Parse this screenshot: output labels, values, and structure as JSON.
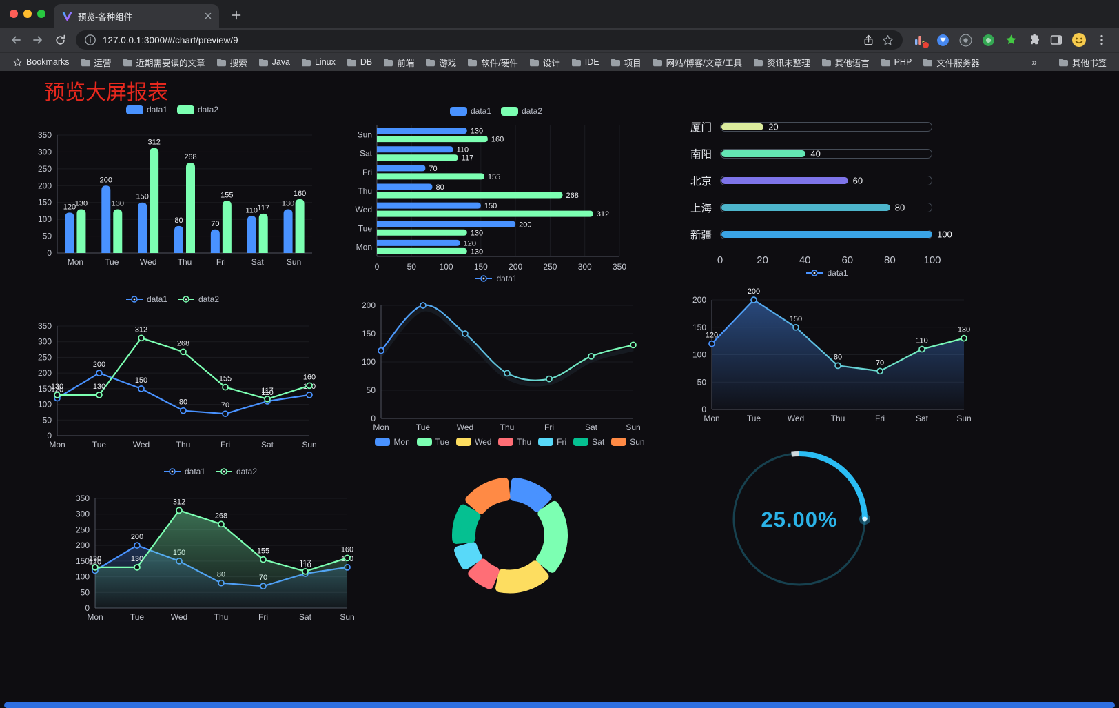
{
  "browser": {
    "tab_title": "预览-各种组件",
    "url": "127.0.0.1:3000/#/chart/preview/9",
    "bookmarks_bar": {
      "first_item": "Bookmarks",
      "folders": [
        "运营",
        "近期需要读的文章",
        "搜索",
        "Java",
        "Linux",
        "DB",
        "前端",
        "游戏",
        "软件/硬件",
        "设计",
        "IDE",
        "项目",
        "网站/博客/文章/工具",
        "资讯未整理",
        "其他语言",
        "PHP",
        "文件服务器"
      ],
      "overflow_chevron": "»",
      "other_bookmarks": "其他书签"
    }
  },
  "page": {
    "title": "预览大屏报表",
    "title_color": "#e6281e"
  },
  "chart_data": [
    {
      "id": "grouped-bar",
      "type": "bar",
      "legend": [
        "data1",
        "data2"
      ],
      "categories": [
        "Mon",
        "Tue",
        "Wed",
        "Thu",
        "Fri",
        "Sat",
        "Sun"
      ],
      "series": [
        {
          "name": "data1",
          "color": "#4992ff",
          "values": [
            120,
            200,
            150,
            80,
            70,
            110,
            130
          ]
        },
        {
          "name": "data2",
          "color": "#7cffb2",
          "values": [
            130,
            130,
            312,
            268,
            155,
            117,
            160
          ]
        }
      ],
      "ylim": [
        0,
        350
      ],
      "ytick_step": 50,
      "value_labels": true
    },
    {
      "id": "grouped-hbar",
      "type": "hbar",
      "legend": [
        "data1",
        "data2"
      ],
      "categories": [
        "Mon",
        "Tue",
        "Wed",
        "Thu",
        "Fri",
        "Sat",
        "Sun"
      ],
      "series": [
        {
          "name": "data1",
          "color": "#4992ff",
          "values": [
            120,
            200,
            150,
            80,
            70,
            110,
            130
          ]
        },
        {
          "name": "data2",
          "color": "#7cffb2",
          "values": [
            130,
            130,
            312,
            268,
            155,
            117,
            160
          ]
        }
      ],
      "xlim": [
        0,
        350
      ],
      "xtick_step": 50,
      "value_labels": true
    },
    {
      "id": "capsule-rank",
      "type": "capsule",
      "max": 100,
      "xticks": [
        0,
        20,
        40,
        60,
        80,
        100
      ],
      "rows": [
        {
          "label": "厦门",
          "value": 20,
          "color": "#dcec9e"
        },
        {
          "label": "南阳",
          "value": 40,
          "color": "#63e6b4"
        },
        {
          "label": "北京",
          "value": 60,
          "color": "#7e74e9"
        },
        {
          "label": "上海",
          "value": 80,
          "color": "#4db5cc"
        },
        {
          "label": "新疆",
          "value": 100,
          "color": "#3aa4e6"
        }
      ]
    },
    {
      "id": "line-two",
      "type": "line",
      "legend": [
        "data1",
        "data2"
      ],
      "categories": [
        "Mon",
        "Tue",
        "Wed",
        "Thu",
        "Fri",
        "Sat",
        "Sun"
      ],
      "series": [
        {
          "name": "data1",
          "color": "#4992ff",
          "values": [
            120,
            200,
            150,
            80,
            70,
            110,
            130
          ]
        },
        {
          "name": "data2",
          "color": "#7cffb2",
          "values": [
            130,
            130,
            312,
            268,
            155,
            117,
            160
          ]
        }
      ],
      "ylim": [
        0,
        350
      ],
      "ytick_step": 50,
      "value_labels": true,
      "smooth": false
    },
    {
      "id": "line-smooth-gradient",
      "type": "line",
      "legend": [
        "data1"
      ],
      "categories": [
        "Mon",
        "Tue",
        "Wed",
        "Thu",
        "Fri",
        "Sat",
        "Sun"
      ],
      "series": [
        {
          "name": "data1",
          "gradient": [
            "#4992ff",
            "#7cffb2"
          ],
          "values": [
            120,
            200,
            150,
            80,
            70,
            110,
            130
          ]
        }
      ],
      "ylim": [
        0,
        200
      ],
      "ytick_step": 50,
      "value_labels": false,
      "smooth": true
    },
    {
      "id": "line-area-gradient",
      "type": "line",
      "legend": [
        "data1"
      ],
      "categories": [
        "Mon",
        "Tue",
        "Wed",
        "Thu",
        "Fri",
        "Sat",
        "Sun"
      ],
      "series": [
        {
          "name": "data1",
          "gradient": [
            "#4992ff",
            "#7cffb2"
          ],
          "area": true,
          "values": [
            120,
            200,
            150,
            80,
            70,
            110,
            130
          ]
        }
      ],
      "ylim": [
        0,
        200
      ],
      "ytick_step": 50,
      "value_labels": true,
      "smooth": false
    },
    {
      "id": "line-area-two",
      "type": "line",
      "legend": [
        "data1",
        "data2"
      ],
      "categories": [
        "Mon",
        "Tue",
        "Wed",
        "Thu",
        "Fri",
        "Sat",
        "Sun"
      ],
      "series": [
        {
          "name": "data1",
          "color": "#4992ff",
          "area": true,
          "values": [
            120,
            200,
            150,
            80,
            70,
            110,
            130
          ]
        },
        {
          "name": "data2",
          "color": "#7cffb2",
          "area": true,
          "values": [
            130,
            130,
            312,
            268,
            155,
            117,
            160
          ]
        }
      ],
      "ylim": [
        0,
        350
      ],
      "ytick_step": 50,
      "value_labels": true,
      "smooth": false
    },
    {
      "id": "donut",
      "type": "donut",
      "legend": [
        "Mon",
        "Tue",
        "Wed",
        "Thu",
        "Fri",
        "Sat",
        "Sun"
      ],
      "values": [
        120,
        200,
        150,
        80,
        70,
        110,
        130
      ],
      "colors": [
        "#4992ff",
        "#7cffb2",
        "#fddd60",
        "#ff6e76",
        "#58d9f9",
        "#05c091",
        "#ff8a45"
      ]
    },
    {
      "id": "gauge",
      "type": "gauge",
      "label": "25.00%",
      "percent": 25,
      "color": "#2bb3e8",
      "arc_color": "#2bbdf4"
    }
  ]
}
